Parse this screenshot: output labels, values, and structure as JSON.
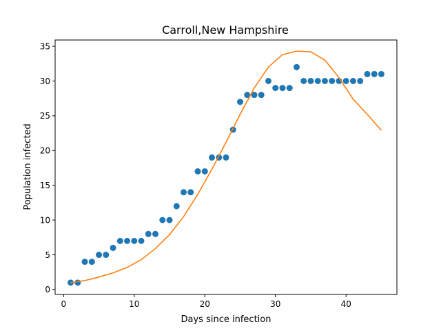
{
  "chart_data": {
    "type": "scatter",
    "title": "Carroll,New Hampshire",
    "xlabel": "Days since infection",
    "ylabel": "Population infected",
    "xlim": [
      -1.2,
      47.2
    ],
    "ylim": [
      -0.7,
      35.9
    ],
    "xticks": [
      0,
      10,
      20,
      30,
      40
    ],
    "yticks": [
      0,
      5,
      10,
      15,
      20,
      25,
      30,
      35
    ],
    "grid": false,
    "colors": {
      "points": "#1f77b4",
      "fit": "#ff7f0e"
    },
    "series": [
      {
        "kind": "scatter",
        "x": [
          1,
          2,
          3,
          4,
          5,
          6,
          7,
          8,
          9,
          10,
          11,
          12,
          13,
          14,
          15,
          16,
          17,
          18,
          19,
          20,
          21,
          22,
          23,
          24,
          25,
          26,
          27,
          28,
          29,
          30,
          31,
          32,
          33,
          34,
          35,
          36,
          37,
          38,
          39,
          40,
          41,
          42,
          43,
          44,
          45
        ],
        "y": [
          1,
          1,
          4,
          4,
          5,
          5,
          6,
          7,
          7,
          7,
          7,
          8,
          8,
          10,
          10,
          12,
          14,
          14,
          17,
          17,
          19,
          19,
          19,
          23,
          27,
          28,
          28,
          28,
          30,
          29,
          29,
          29,
          32,
          30,
          30,
          30,
          30,
          30,
          30,
          30,
          30,
          30,
          31,
          31,
          31
        ]
      },
      {
        "kind": "line",
        "x": [
          1,
          3,
          5,
          7,
          9,
          11,
          13,
          15,
          17,
          19,
          21,
          23,
          25,
          27,
          29,
          31,
          33,
          35,
          37,
          39,
          41,
          43,
          45
        ],
        "y": [
          1.0,
          1.3,
          1.8,
          2.4,
          3.2,
          4.3,
          5.9,
          7.9,
          10.5,
          13.7,
          17.3,
          21.2,
          25.2,
          29.0,
          32.0,
          33.8,
          34.3,
          34.2,
          33.0,
          30.5,
          27.4,
          25.2,
          22.9
        ]
      }
    ]
  }
}
